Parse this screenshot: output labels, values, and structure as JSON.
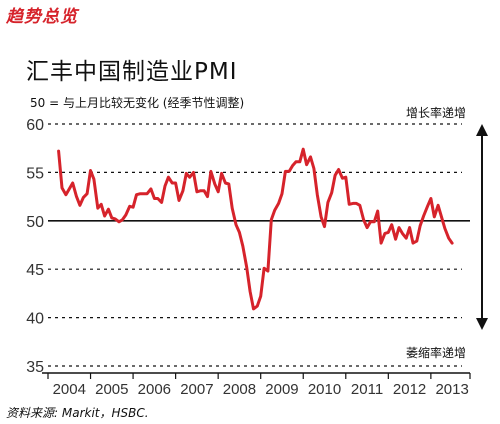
{
  "header_tag": "趋势总览",
  "chart_data": {
    "type": "line",
    "title": "汇丰中国制造业PMI",
    "subtitle": "50 = 与上月比较无变化 (经季节性调整)",
    "up_label": "增长率递增",
    "down_label": "萎缩率递增",
    "source": "资料来源: Markit，HSBC.",
    "ylim": [
      35,
      60
    ],
    "yticks": [
      35,
      40,
      45,
      50,
      55,
      60
    ],
    "baseline": 50,
    "xlim": [
      2004.0,
      2013.92
    ],
    "xticks": [
      "2004",
      "2005",
      "2006",
      "2007",
      "2008",
      "2009",
      "2010",
      "2011",
      "2012",
      "2013"
    ],
    "series": [
      {
        "color": "#d6232b",
        "x": [
          2004.25,
          2004.33,
          2004.42,
          2004.5,
          2004.58,
          2004.67,
          2004.75,
          2004.83,
          2004.92,
          2005.0,
          2005.08,
          2005.17,
          2005.25,
          2005.33,
          2005.42,
          2005.5,
          2005.58,
          2005.67,
          2005.75,
          2005.83,
          2005.92,
          2006.0,
          2006.08,
          2006.17,
          2006.25,
          2006.33,
          2006.42,
          2006.5,
          2006.58,
          2006.67,
          2006.75,
          2006.83,
          2006.92,
          2007.0,
          2007.08,
          2007.17,
          2007.25,
          2007.33,
          2007.42,
          2007.5,
          2007.58,
          2007.67,
          2007.75,
          2007.83,
          2007.92,
          2008.0,
          2008.08,
          2008.17,
          2008.25,
          2008.33,
          2008.42,
          2008.5,
          2008.58,
          2008.67,
          2008.75,
          2008.83,
          2008.92,
          2009.0,
          2009.08,
          2009.17,
          2009.25,
          2009.33,
          2009.42,
          2009.5,
          2009.58,
          2009.67,
          2009.75,
          2009.83,
          2009.92,
          2010.0,
          2010.08,
          2010.17,
          2010.25,
          2010.33,
          2010.42,
          2010.5,
          2010.58,
          2010.67,
          2010.75,
          2010.83,
          2010.92,
          2011.0,
          2011.08,
          2011.17,
          2011.25,
          2011.33,
          2011.42,
          2011.5,
          2011.58,
          2011.67,
          2011.75,
          2011.83,
          2011.92,
          2012.0,
          2012.08,
          2012.17,
          2012.25,
          2012.33,
          2012.42,
          2012.5,
          2012.58,
          2012.67,
          2012.75,
          2012.83,
          2012.92,
          2013.0,
          2013.08,
          2013.17,
          2013.25,
          2013.33,
          2013.42,
          2013.5
        ],
        "y": [
          57.2,
          53.4,
          52.7,
          53.3,
          53.9,
          52.5,
          51.6,
          52.4,
          52.8,
          55.2,
          54.3,
          51.3,
          51.7,
          50.5,
          51.2,
          50.3,
          50.2,
          49.9,
          50.1,
          50.6,
          51.5,
          51.4,
          52.7,
          52.8,
          52.8,
          52.8,
          53.3,
          52.3,
          52.3,
          51.9,
          53.6,
          54.5,
          53.9,
          53.9,
          52.1,
          53.1,
          54.9,
          54.5,
          55.0,
          53.0,
          53.1,
          53.1,
          52.5,
          55.1,
          53.8,
          53.0,
          54.9,
          53.9,
          53.8,
          51.3,
          49.6,
          48.8,
          47.4,
          45.2,
          42.7,
          40.9,
          41.2,
          42.2,
          45.1,
          44.8,
          50.1,
          51.1,
          51.8,
          52.8,
          55.1,
          55.1,
          55.7,
          56.1,
          56.1,
          57.4,
          55.8,
          56.6,
          55.4,
          52.7,
          50.4,
          49.4,
          51.9,
          52.9,
          54.7,
          55.3,
          54.4,
          54.5,
          51.7,
          51.8,
          51.8,
          51.6,
          50.1,
          49.3,
          49.9,
          49.9,
          51.0,
          47.7,
          48.7,
          48.8,
          49.6,
          48.1,
          49.3,
          48.7,
          48.2,
          49.3,
          47.7,
          47.9,
          49.5,
          50.5,
          51.5,
          52.3,
          50.4,
          51.6,
          50.4,
          49.2,
          48.2,
          47.7
        ]
      }
    ]
  }
}
